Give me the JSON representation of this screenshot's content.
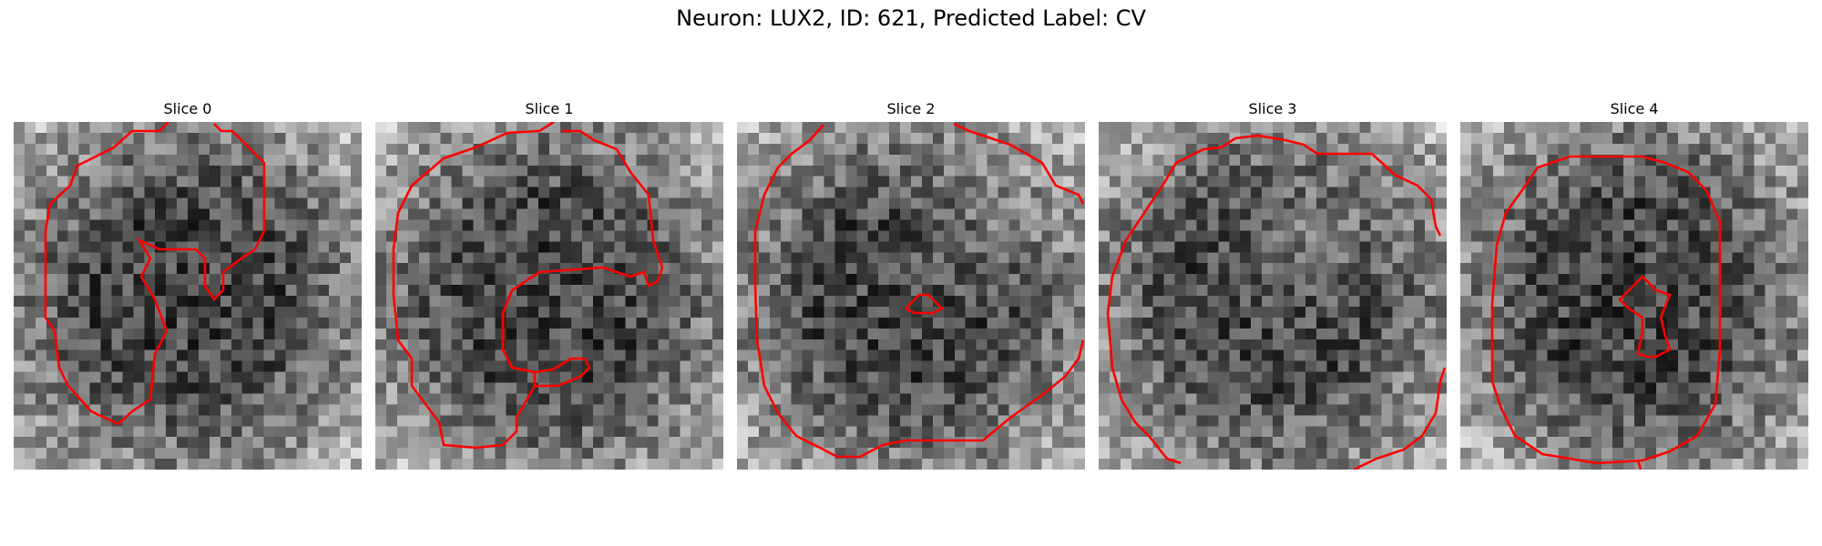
{
  "figure": {
    "title": "Neuron: LUX2, ID: 621, Predicted Label: CV"
  },
  "image": {
    "grid_size": 32,
    "colormap": "grayscale",
    "contour_color": "#ff0000"
  },
  "panels": [
    {
      "title": "Slice 0",
      "seed": 11
    },
    {
      "title": "Slice 1",
      "seed": 23
    },
    {
      "title": "Slice 2",
      "seed": 37
    },
    {
      "title": "Slice 3",
      "seed": 41
    },
    {
      "title": "Slice 4",
      "seed": 59
    }
  ]
}
